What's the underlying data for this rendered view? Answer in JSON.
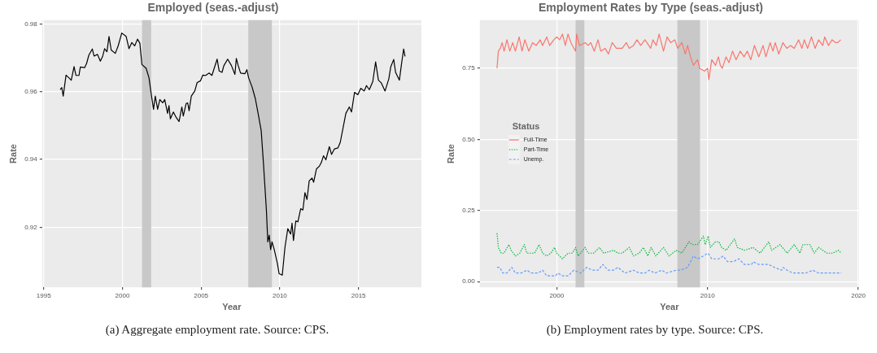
{
  "chart_data": [
    {
      "type": "line",
      "title": "Employed (seas.-adjust)",
      "xlabel": "Year",
      "ylabel": "Rate",
      "xlim": [
        1994.9,
        2019.0
      ],
      "xticks": [
        1995,
        2000,
        2005,
        2010,
        2015
      ],
      "ylim": [
        0.9023,
        0.9811
      ],
      "yticks": [
        0.92,
        0.94,
        0.96,
        0.98
      ],
      "grid": true,
      "line_style": "solid",
      "marker": "none",
      "bands": [
        {
          "axis": "x",
          "from": 2001.25,
          "to": 2001.83,
          "color": "#c8c8c8"
        },
        {
          "axis": "x",
          "from": 2008.0,
          "to": 2009.5,
          "color": "#c8c8c8"
        }
      ],
      "series": [
        {
          "color": "#000000",
          "x": [
            1996.05,
            1996.15,
            1996.24,
            1996.42,
            1996.6,
            1996.75,
            1996.93,
            1997.05,
            1997.24,
            1997.33,
            1997.6,
            1997.73,
            1997.87,
            1998.09,
            1998.2,
            1998.42,
            1998.6,
            1998.75,
            1998.87,
            1999.02,
            1999.15,
            1999.29,
            1999.55,
            1999.73,
            1999.96,
            2000.24,
            2000.42,
            2000.6,
            2000.78,
            2000.96,
            2001.11,
            2001.24,
            2001.51,
            2001.69,
            2001.84,
            2001.98,
            2002.09,
            2002.24,
            2002.38,
            2002.56,
            2002.69,
            2002.87,
            2002.96,
            2003.05,
            2003.24,
            2003.42,
            2003.6,
            2003.78,
            2003.87,
            2004.05,
            2004.15,
            2004.24,
            2004.38,
            2004.6,
            2004.75,
            2004.96,
            2005.11,
            2005.29,
            2005.51,
            2005.69,
            2006.02,
            2006.15,
            2006.33,
            2006.45,
            2006.69,
            2006.93,
            2007.15,
            2007.24,
            2007.36,
            2007.51,
            2007.78,
            2007.91,
            2008.02,
            2008.24,
            2008.45,
            2008.64,
            2008.82,
            2008.96,
            2009.15,
            2009.24,
            2009.33,
            2009.42,
            2009.51,
            2009.65,
            2009.84,
            2009.96,
            2010.16,
            2010.33,
            2010.51,
            2010.69,
            2010.78,
            2010.87,
            2011.02,
            2011.15,
            2011.33,
            2011.47,
            2011.6,
            2011.73,
            2011.87,
            2012.05,
            2012.15,
            2012.33,
            2012.51,
            2012.64,
            2012.78,
            2012.93,
            2013.15,
            2013.29,
            2013.47,
            2013.69,
            2013.84,
            2014.02,
            2014.2,
            2014.42,
            2014.56,
            2014.75,
            2014.96,
            2015.15,
            2015.36,
            2015.51,
            2015.69,
            2015.91,
            2016.09,
            2016.27,
            2016.45,
            2016.69,
            2016.93,
            2017.05,
            2017.24,
            2017.36,
            2017.6,
            2017.73,
            2017.87,
            2017.96
          ],
          "values": [
            0.9606,
            0.9612,
            0.9587,
            0.9649,
            0.9641,
            0.9634,
            0.9674,
            0.9648,
            0.9648,
            0.9673,
            0.9671,
            0.9684,
            0.9708,
            0.9726,
            0.9705,
            0.971,
            0.969,
            0.9705,
            0.9727,
            0.9718,
            0.9763,
            0.9723,
            0.9713,
            0.9735,
            0.9773,
            0.9763,
            0.9727,
            0.9745,
            0.9735,
            0.9755,
            0.9743,
            0.968,
            0.9669,
            0.9641,
            0.9591,
            0.9548,
            0.9587,
            0.9548,
            0.9577,
            0.9567,
            0.9577,
            0.9536,
            0.9559,
            0.952,
            0.954,
            0.9524,
            0.9512,
            0.9555,
            0.9528,
            0.9565,
            0.9567,
            0.9544,
            0.9587,
            0.9602,
            0.9627,
            0.9632,
            0.9649,
            0.9648,
            0.9655,
            0.9648,
            0.9696,
            0.9661,
            0.9657,
            0.9677,
            0.9696,
            0.9677,
            0.9651,
            0.9698,
            0.9677,
            0.9655,
            0.9653,
            0.9665,
            0.9641,
            0.9614,
            0.9579,
            0.9532,
            0.9485,
            0.9391,
            0.9251,
            0.9157,
            0.9177,
            0.9134,
            0.9157,
            0.9134,
            0.9095,
            0.9063,
            0.9059,
            0.9141,
            0.9196,
            0.918,
            0.9212,
            0.9161,
            0.9219,
            0.9216,
            0.9255,
            0.9251,
            0.9302,
            0.9282,
            0.9337,
            0.9345,
            0.9333,
            0.9372,
            0.938,
            0.9391,
            0.9411,
            0.9399,
            0.9438,
            0.9415,
            0.9431,
            0.9434,
            0.945,
            0.9493,
            0.9536,
            0.9555,
            0.954,
            0.9598,
            0.9591,
            0.961,
            0.9602,
            0.9618,
            0.9606,
            0.963,
            0.9688,
            0.9634,
            0.9626,
            0.9602,
            0.9638,
            0.9673,
            0.9695,
            0.9657,
            0.9634,
            0.968,
            0.9726,
            0.9704
          ]
        }
      ],
      "annotations": [
        "(a) Aggregate employment rate. Source: CPS."
      ]
    },
    {
      "type": "line",
      "title": "Employment Rates by Type (seas.-adjust)",
      "xlabel": "Year",
      "ylabel": "Rate",
      "xlim": [
        1994.9,
        2020.05
      ],
      "xticks": [
        2000,
        2010,
        2020
      ],
      "ylim": [
        -0.02,
        0.919
      ],
      "yticks": [
        {
          "value": 0,
          "label": "0.00"
        },
        {
          "value": 0.25,
          "label": "0.25"
        },
        {
          "value": 0.5,
          "label": "0.50"
        },
        {
          "value": 0.75,
          "label": "0.75"
        }
      ],
      "grid": true,
      "legend": "left",
      "legend_title": "Status",
      "marker": "none",
      "bands": [
        {
          "axis": "x",
          "from": 2001.25,
          "to": 2001.83,
          "color": "#c8c8c8"
        },
        {
          "axis": "x",
          "from": 2008.0,
          "to": 2009.5,
          "color": "#c8c8c8"
        }
      ],
      "series": [
        {
          "name": "Full-Time",
          "color": "#f8766d",
          "line_style": "solid",
          "x": [
            1996.04,
            1996.13,
            1996.26,
            1996.38,
            1996.51,
            1996.7,
            1996.89,
            1997.08,
            1997.26,
            1997.51,
            1997.7,
            1997.89,
            1998.15,
            1998.4,
            1998.64,
            1998.91,
            1999.06,
            1999.34,
            1999.53,
            1999.81,
            2000,
            2000.19,
            2000.38,
            2000.57,
            2000.75,
            2000.94,
            2001.25,
            2001.32,
            2001.51,
            2001.89,
            2002.08,
            2002.26,
            2002.49,
            2002.74,
            2002.92,
            2003.21,
            2003.43,
            2003.68,
            2003.96,
            2004.34,
            2004.62,
            2004.81,
            2005.09,
            2005.32,
            2005.57,
            2005.85,
            2006.23,
            2006.38,
            2006.6,
            2006.79,
            2007.08,
            2007.32,
            2007.55,
            2007.83,
            2008.02,
            2008.3,
            2008.53,
            2008.68,
            2008.87,
            2009.06,
            2009.34,
            2009.47,
            2009.81,
            2010,
            2010.09,
            2010.28,
            2010.53,
            2010.72,
            2010.85,
            2010.98,
            2011.23,
            2011.42,
            2011.66,
            2011.89,
            2012.17,
            2012.42,
            2012.64,
            2012.87,
            2013.11,
            2013.4,
            2013.68,
            2013.87,
            2014.15,
            2014.34,
            2014.49,
            2014.72,
            2015,
            2015.25,
            2015.51,
            2015.75,
            2016.04,
            2016.26,
            2016.42,
            2016.64,
            2016.89,
            2017.13,
            2017.36,
            2017.64,
            2017.77,
            2018.02,
            2018.26,
            2018.49,
            2018.64,
            2018.83
          ],
          "values": [
            0.75,
            0.81,
            0.82,
            0.84,
            0.81,
            0.85,
            0.81,
            0.84,
            0.81,
            0.86,
            0.81,
            0.85,
            0.81,
            0.84,
            0.83,
            0.85,
            0.83,
            0.86,
            0.83,
            0.85,
            0.86,
            0.85,
            0.87,
            0.83,
            0.87,
            0.84,
            0.81,
            0.87,
            0.83,
            0.84,
            0.83,
            0.84,
            0.81,
            0.85,
            0.81,
            0.82,
            0.8,
            0.84,
            0.82,
            0.82,
            0.84,
            0.82,
            0.83,
            0.85,
            0.83,
            0.85,
            0.82,
            0.85,
            0.83,
            0.87,
            0.81,
            0.86,
            0.84,
            0.85,
            0.82,
            0.84,
            0.8,
            0.83,
            0.79,
            0.76,
            0.78,
            0.75,
            0.74,
            0.75,
            0.71,
            0.78,
            0.76,
            0.79,
            0.76,
            0.75,
            0.79,
            0.77,
            0.81,
            0.78,
            0.81,
            0.79,
            0.81,
            0.78,
            0.83,
            0.79,
            0.83,
            0.79,
            0.84,
            0.81,
            0.84,
            0.8,
            0.84,
            0.82,
            0.83,
            0.82,
            0.85,
            0.82,
            0.85,
            0.82,
            0.86,
            0.82,
            0.85,
            0.83,
            0.86,
            0.83,
            0.85,
            0.84,
            0.84,
            0.85
          ]
        },
        {
          "name": "Part-Time",
          "color": "#00ba38",
          "line_style": "dotted",
          "x": [
            1996.04,
            1996.13,
            1996.32,
            1996.51,
            1996.83,
            1996.98,
            1997.26,
            1997.55,
            1997.85,
            1998.02,
            1998.26,
            1998.53,
            1998.83,
            1999.06,
            1999.34,
            1999.62,
            1999.85,
            2000,
            2000.38,
            2000.75,
            2001.04,
            2001.25,
            2001.42,
            2001.89,
            2002.08,
            2002.45,
            2002.83,
            2003.11,
            2003.77,
            2004.06,
            2004.34,
            2004.81,
            2005.09,
            2005.47,
            2005.75,
            2006.04,
            2006.26,
            2006.57,
            2007.08,
            2007.45,
            2007.92,
            2008.3,
            2008.77,
            2008.96,
            2009.34,
            2009.72,
            2009.85,
            2010.04,
            2010.19,
            2010.53,
            2010.75,
            2010.94,
            2011.23,
            2011.79,
            2011.98,
            2012.45,
            2013.02,
            2013.49,
            2014.06,
            2014.25,
            2014.81,
            2015.28,
            2015.75,
            2016.13,
            2016.32,
            2016.79,
            2017.08,
            2017.36,
            2017.92,
            2018.3,
            2018.68,
            2018.87
          ],
          "values": [
            0.17,
            0.12,
            0.1,
            0.1,
            0.13,
            0.11,
            0.09,
            0.1,
            0.13,
            0.1,
            0.1,
            0.1,
            0.13,
            0.1,
            0.09,
            0.1,
            0.12,
            0.1,
            0.08,
            0.1,
            0.1,
            0.12,
            0.09,
            0.12,
            0.1,
            0.1,
            0.12,
            0.1,
            0.11,
            0.1,
            0.1,
            0.12,
            0.09,
            0.1,
            0.12,
            0.09,
            0.12,
            0.09,
            0.12,
            0.09,
            0.11,
            0.1,
            0.14,
            0.13,
            0.13,
            0.16,
            0.13,
            0.16,
            0.12,
            0.14,
            0.14,
            0.12,
            0.11,
            0.15,
            0.12,
            0.11,
            0.12,
            0.1,
            0.14,
            0.11,
            0.13,
            0.1,
            0.13,
            0.1,
            0.13,
            0.13,
            0.1,
            0.12,
            0.1,
            0.1,
            0.11,
            0.1
          ]
        },
        {
          "name": "Unemp.",
          "color": "#619cff",
          "line_style": "dashed",
          "x": [
            1996.04,
            1996.23,
            1996.42,
            1996.7,
            1997.02,
            1997.26,
            1997.64,
            1998.02,
            1998.3,
            1998.77,
            1999.06,
            1999.34,
            1999.91,
            2000.09,
            2000.38,
            2000.75,
            2001.13,
            2001.6,
            2001.98,
            2002.36,
            2002.74,
            2003.06,
            2003.4,
            2003.77,
            2004.06,
            2004.53,
            2005.09,
            2005.47,
            2005.85,
            2006.13,
            2006.51,
            2006.98,
            2007.26,
            2007.92,
            2008.21,
            2008.68,
            2009.06,
            2009.34,
            2009.72,
            2010.04,
            2010.28,
            2010.75,
            2011.04,
            2011.32,
            2011.7,
            2012.08,
            2012.45,
            2012.92,
            2013.02,
            2013.4,
            2013.96,
            2014.06,
            2014.43,
            2014.91,
            2015,
            2015.28,
            2015.66,
            2016.04,
            2016.51,
            2016.98,
            2017.36,
            2017.92,
            2018.49,
            2018.87
          ],
          "values": [
            0.05,
            0.05,
            0.03,
            0.03,
            0.05,
            0.03,
            0.03,
            0.04,
            0.03,
            0.03,
            0.04,
            0.02,
            0.02,
            0.03,
            0.02,
            0.02,
            0.04,
            0.03,
            0.05,
            0.04,
            0.04,
            0.06,
            0.04,
            0.04,
            0.05,
            0.03,
            0.04,
            0.03,
            0.03,
            0.04,
            0.03,
            0.04,
            0.03,
            0.04,
            0.04,
            0.05,
            0.09,
            0.08,
            0.09,
            0.1,
            0.08,
            0.08,
            0.09,
            0.07,
            0.07,
            0.08,
            0.06,
            0.06,
            0.07,
            0.06,
            0.06,
            0.06,
            0.05,
            0.04,
            0.05,
            0.04,
            0.03,
            0.03,
            0.03,
            0.04,
            0.03,
            0.03,
            0.03,
            0.03
          ]
        }
      ],
      "annotations": [
        "(b) Employment rates by type. Source: CPS."
      ]
    }
  ]
}
